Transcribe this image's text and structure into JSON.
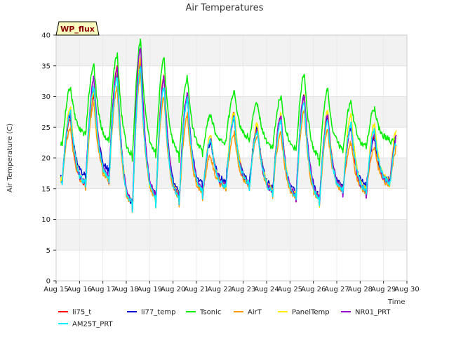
{
  "chart_data": {
    "type": "line",
    "title": "Air Temperatures",
    "xlabel": "Time",
    "ylabel": "Air Temperature (C)",
    "badge": "WP_flux",
    "xlim": [
      15,
      30
    ],
    "ylim": [
      0,
      40
    ],
    "x_ticks": [
      15,
      16,
      17,
      18,
      19,
      20,
      21,
      22,
      23,
      24,
      25,
      26,
      27,
      28,
      29,
      30
    ],
    "x_tick_labels": [
      "Aug 15",
      "Aug 16",
      "Aug 17",
      "Aug 18",
      "Aug 19",
      "Aug 20",
      "Aug 21",
      "Aug 22",
      "Aug 23",
      "Aug 24",
      "Aug 25",
      "Aug 26",
      "Aug 27",
      "Aug 28",
      "Aug 29",
      "Aug 30"
    ],
    "y_ticks": [
      0,
      5,
      10,
      15,
      20,
      25,
      30,
      35,
      40
    ],
    "y_tick_labels": [
      "0",
      "5",
      "10",
      "15",
      "20",
      "25",
      "30",
      "35",
      "40"
    ],
    "grid": true,
    "legend_position": "bottom",
    "days": [
      15,
      16,
      17,
      18,
      19,
      20,
      21,
      22,
      23,
      24,
      25,
      26,
      27,
      28,
      29
    ],
    "series": [
      {
        "name": "li75_t",
        "color": "#ff0000",
        "daily_max": [
          26.5,
          30,
          34.5,
          35.5,
          33,
          30,
          23,
          27,
          25,
          26.5,
          30,
          27,
          25,
          23.5,
          24
        ],
        "daily_min": [
          15.5,
          14.5,
          15,
          10,
          11,
          11.5,
          13,
          14.5,
          14.5,
          13.5,
          12.5,
          11.5,
          13.5,
          13.5,
          15
        ]
      },
      {
        "name": "li77_temp",
        "color": "#0000cc",
        "daily_max": [
          27,
          31,
          33.5,
          35,
          33,
          30,
          22.5,
          26.5,
          25,
          26.5,
          30,
          26.5,
          25,
          23,
          24
        ],
        "daily_min": [
          16,
          16,
          16.5,
          10,
          11.5,
          12,
          14,
          15.5,
          15,
          14,
          13,
          12,
          14,
          14.5,
          15.5
        ]
      },
      {
        "name": "Tsonic",
        "color": "#00ee00",
        "daily_max": [
          31.5,
          35,
          37,
          39,
          36,
          33,
          27,
          30.5,
          29,
          30,
          33.5,
          31,
          29,
          28,
          23
        ],
        "daily_min": [
          21.5,
          23,
          21.5,
          18.5,
          19,
          19,
          20,
          22,
          22.5,
          21,
          20.5,
          18.5,
          20.5,
          21,
          22.5
        ]
      },
      {
        "name": "AirT",
        "color": "#ff9900",
        "daily_max": [
          25,
          29,
          31.5,
          33.5,
          30,
          27,
          20.5,
          24,
          24,
          24,
          27.5,
          24.5,
          22.5,
          21.5,
          22
        ]
      },
      {
        "name": "PanelTemp",
        "color": "#ffee00",
        "daily_max": [
          28,
          31,
          34,
          36,
          33.5,
          30,
          23.5,
          27.5,
          25.5,
          27,
          30,
          27.5,
          27,
          25.5,
          25.5
        ]
      },
      {
        "name": "NR01_PRT",
        "color": "#9900cc",
        "daily_max": [
          27,
          33,
          34.5,
          38,
          33,
          30.5,
          23,
          26.5,
          24.5,
          27,
          30.5,
          27,
          25,
          23.5,
          24
        ]
      },
      {
        "name": "AM25T_PRT",
        "color": "#00eeff",
        "daily_max": [
          27.5,
          31.5,
          33,
          34.5,
          31.5,
          29.5,
          23,
          26.5,
          24.5,
          26,
          29,
          26,
          25.5,
          24.5,
          23
        ]
      }
    ]
  }
}
